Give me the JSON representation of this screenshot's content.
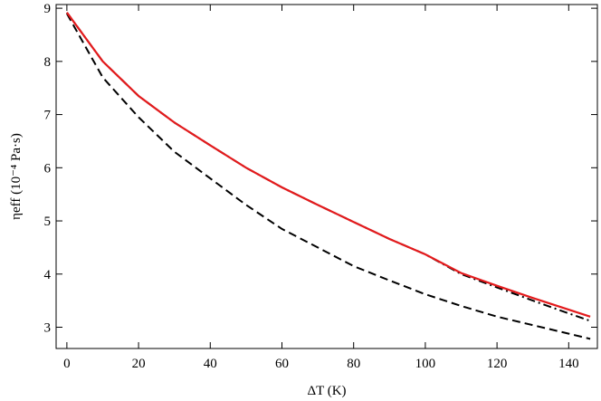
{
  "chart_data": {
    "type": "line",
    "xlabel": "ΔT (K)",
    "ylabel": "ηeff (10⁻⁴ Pa·s)",
    "x": [
      0,
      10,
      20,
      30,
      40,
      50,
      60,
      70,
      80,
      90,
      100,
      110,
      120,
      130,
      140,
      146
    ],
    "series": [
      {
        "color": "#000000",
        "style": "dashdot",
        "values": [
          8.92,
          8.0,
          7.35,
          6.85,
          6.42,
          6.0,
          5.63,
          5.3,
          4.98,
          4.66,
          4.37,
          4.0,
          3.75,
          3.5,
          3.26,
          3.12
        ]
      },
      {
        "color": "#000000",
        "style": "dashed",
        "values": [
          8.9,
          7.7,
          6.95,
          6.3,
          5.8,
          5.3,
          4.85,
          4.5,
          4.15,
          3.88,
          3.62,
          3.4,
          3.2,
          3.04,
          2.88,
          2.78
        ]
      },
      {
        "color": "#e31a1c",
        "style": "solid",
        "values": [
          8.92,
          8.0,
          7.35,
          6.85,
          6.42,
          6.0,
          5.63,
          5.3,
          4.98,
          4.66,
          4.37,
          4.02,
          3.78,
          3.55,
          3.33,
          3.2
        ]
      }
    ],
    "xlim": [
      -3,
      148
    ],
    "xticks": [
      0,
      20,
      40,
      60,
      80,
      100,
      120,
      140
    ],
    "ylim": [
      2.6,
      9.07
    ],
    "yticks": [
      3,
      4,
      5,
      6,
      7,
      8,
      9
    ]
  }
}
